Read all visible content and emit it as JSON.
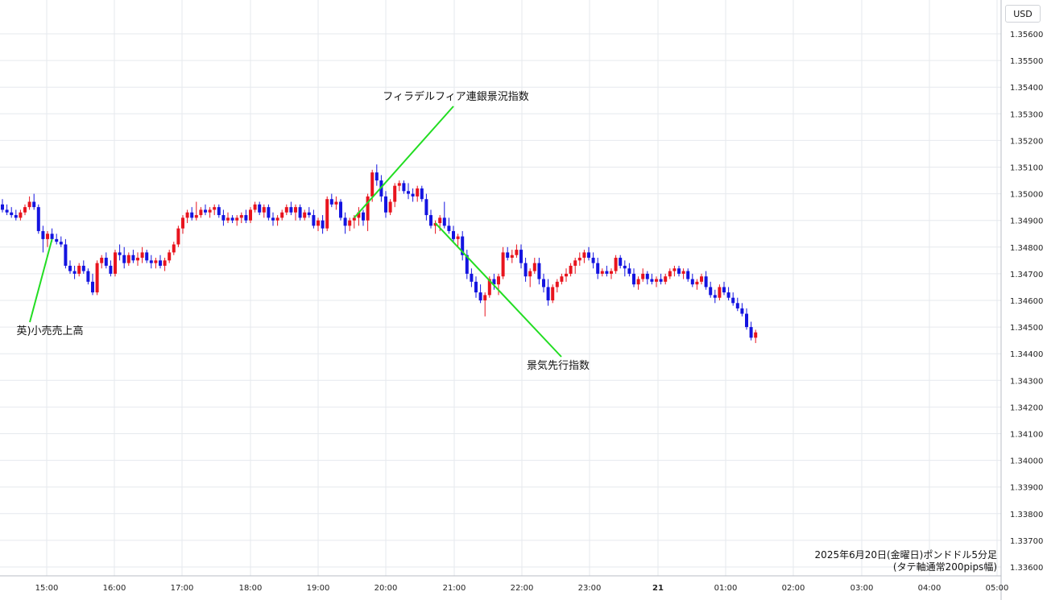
{
  "currency": "USD",
  "chart_data": {
    "type": "candlestick",
    "title": "2025年6月20日(金曜日)ポンドドル5分足",
    "subtitle": "(タテ軸通常200pips幅)",
    "ylim": [
      1.3355,
      1.357
    ],
    "yticks": [
      "1.35600",
      "1.35500",
      "1.35400",
      "1.35300",
      "1.35200",
      "1.35100",
      "1.35000",
      "1.34900",
      "1.34800",
      "1.34700",
      "1.34600",
      "1.34500",
      "1.34400",
      "1.34300",
      "1.34200",
      "1.34100",
      "1.34000",
      "1.33900",
      "1.33800",
      "1.33700",
      "1.33600"
    ],
    "xticks": [
      "15:00",
      "16:00",
      "17:00",
      "18:00",
      "19:00",
      "20:00",
      "21:00",
      "22:00",
      "23:00",
      "21",
      "01:00",
      "02:00",
      "03:00",
      "04:00",
      "05:00"
    ],
    "xticks_bold": [
      "21"
    ],
    "grid": true,
    "up_color": "#e8141e",
    "down_color": "#1414e0",
    "annotations": [
      {
        "text": "英)小売売上高",
        "time_index": 11
      },
      {
        "text": "フィラデルフィア連銀景況指数",
        "time_index": 78
      },
      {
        "text": "景気先行指数",
        "time_index": 96
      }
    ],
    "ohlc_start_time": "14:30",
    "interval_minutes": 5,
    "ohlc": [
      [
        1.3496,
        1.3498,
        1.3493,
        1.3494
      ],
      [
        1.3494,
        1.3496,
        1.3492,
        1.3493
      ],
      [
        1.3493,
        1.3495,
        1.3491,
        1.3492
      ],
      [
        1.3492,
        1.3494,
        1.349,
        1.3491
      ],
      [
        1.3491,
        1.3494,
        1.349,
        1.3493
      ],
      [
        1.3493,
        1.3496,
        1.3492,
        1.3495
      ],
      [
        1.3495,
        1.3499,
        1.3494,
        1.3497
      ],
      [
        1.3497,
        1.35,
        1.3494,
        1.3495
      ],
      [
        1.3495,
        1.3496,
        1.3485,
        1.3486
      ],
      [
        1.3486,
        1.3488,
        1.3478,
        1.3483
      ],
      [
        1.3483,
        1.3486,
        1.348,
        1.3485
      ],
      [
        1.3485,
        1.3487,
        1.3482,
        1.3483
      ],
      [
        1.3483,
        1.3485,
        1.3481,
        1.3482
      ],
      [
        1.3482,
        1.3484,
        1.348,
        1.3481
      ],
      [
        1.3481,
        1.3483,
        1.3472,
        1.3473
      ],
      [
        1.3473,
        1.3475,
        1.347,
        1.3471
      ],
      [
        1.3471,
        1.3473,
        1.3468,
        1.347
      ],
      [
        1.347,
        1.3474,
        1.3469,
        1.3473
      ],
      [
        1.3473,
        1.3475,
        1.347,
        1.3471
      ],
      [
        1.3471,
        1.3472,
        1.3466,
        1.3467
      ],
      [
        1.3467,
        1.347,
        1.3462,
        1.3463
      ],
      [
        1.3463,
        1.3475,
        1.3462,
        1.3474
      ],
      [
        1.3474,
        1.3477,
        1.3472,
        1.3476
      ],
      [
        1.3476,
        1.3478,
        1.3472,
        1.3473
      ],
      [
        1.3473,
        1.3475,
        1.3469,
        1.347
      ],
      [
        1.347,
        1.3479,
        1.3469,
        1.3478
      ],
      [
        1.3478,
        1.3481,
        1.3475,
        1.3477
      ],
      [
        1.3477,
        1.348,
        1.3472,
        1.3474
      ],
      [
        1.3474,
        1.3478,
        1.3473,
        1.3477
      ],
      [
        1.3477,
        1.3479,
        1.3474,
        1.3475
      ],
      [
        1.3475,
        1.3478,
        1.3473,
        1.3476
      ],
      [
        1.3476,
        1.348,
        1.3474,
        1.3478
      ],
      [
        1.3478,
        1.3479,
        1.3474,
        1.3475
      ],
      [
        1.3475,
        1.3477,
        1.3472,
        1.3474
      ],
      [
        1.3474,
        1.3476,
        1.3472,
        1.3475
      ],
      [
        1.3475,
        1.3477,
        1.3472,
        1.3473
      ],
      [
        1.3473,
        1.3476,
        1.3471,
        1.3475
      ],
      [
        1.3475,
        1.3479,
        1.3474,
        1.3478
      ],
      [
        1.3478,
        1.3482,
        1.3477,
        1.3481
      ],
      [
        1.3481,
        1.3488,
        1.348,
        1.3487
      ],
      [
        1.3487,
        1.3492,
        1.3485,
        1.3491
      ],
      [
        1.3491,
        1.3494,
        1.3489,
        1.3493
      ],
      [
        1.3493,
        1.3495,
        1.349,
        1.3491
      ],
      [
        1.3491,
        1.3497,
        1.349,
        1.3492
      ],
      [
        1.3492,
        1.3495,
        1.3491,
        1.3494
      ],
      [
        1.3494,
        1.3496,
        1.3492,
        1.3493
      ],
      [
        1.3493,
        1.3495,
        1.3491,
        1.3494
      ],
      [
        1.3494,
        1.3496,
        1.3492,
        1.3495
      ],
      [
        1.3495,
        1.3496,
        1.3491,
        1.3492
      ],
      [
        1.3492,
        1.3494,
        1.3488,
        1.349
      ],
      [
        1.349,
        1.3493,
        1.3489,
        1.3491
      ],
      [
        1.3491,
        1.3492,
        1.3489,
        1.349
      ],
      [
        1.349,
        1.3492,
        1.3488,
        1.3491
      ],
      [
        1.3491,
        1.3493,
        1.3489,
        1.3492
      ],
      [
        1.3492,
        1.3494,
        1.3489,
        1.349
      ],
      [
        1.349,
        1.3495,
        1.3489,
        1.3494
      ],
      [
        1.3494,
        1.3497,
        1.3493,
        1.3496
      ],
      [
        1.3496,
        1.3497,
        1.3492,
        1.3493
      ],
      [
        1.3493,
        1.3496,
        1.3491,
        1.3495
      ],
      [
        1.3495,
        1.3496,
        1.349,
        1.3491
      ],
      [
        1.3491,
        1.3493,
        1.3488,
        1.349
      ],
      [
        1.349,
        1.3492,
        1.3488,
        1.3491
      ],
      [
        1.3491,
        1.3494,
        1.349,
        1.3493
      ],
      [
        1.3493,
        1.3496,
        1.3492,
        1.3495
      ],
      [
        1.3495,
        1.3497,
        1.3492,
        1.3493
      ],
      [
        1.3493,
        1.3496,
        1.349,
        1.3495
      ],
      [
        1.3495,
        1.3496,
        1.349,
        1.3491
      ],
      [
        1.3491,
        1.3494,
        1.349,
        1.3493
      ],
      [
        1.3493,
        1.3495,
        1.3491,
        1.3492
      ],
      [
        1.3492,
        1.3494,
        1.3487,
        1.3488
      ],
      [
        1.3488,
        1.3491,
        1.3486,
        1.349
      ],
      [
        1.349,
        1.3492,
        1.3485,
        1.3487
      ],
      [
        1.3487,
        1.3499,
        1.3486,
        1.3498
      ],
      [
        1.3498,
        1.35,
        1.3495,
        1.3496
      ],
      [
        1.3496,
        1.3499,
        1.3494,
        1.3497
      ],
      [
        1.3497,
        1.3498,
        1.349,
        1.3491
      ],
      [
        1.3491,
        1.3493,
        1.3485,
        1.3488
      ],
      [
        1.3488,
        1.3491,
        1.3486,
        1.349
      ],
      [
        1.349,
        1.3492,
        1.3487,
        1.3491
      ],
      [
        1.3491,
        1.3495,
        1.3488,
        1.3493
      ],
      [
        1.3493,
        1.3494,
        1.3488,
        1.349
      ],
      [
        1.349,
        1.35,
        1.3486,
        1.3499
      ],
      [
        1.3499,
        1.3509,
        1.3497,
        1.3508
      ],
      [
        1.3508,
        1.3511,
        1.3503,
        1.3505
      ],
      [
        1.3505,
        1.3507,
        1.3497,
        1.3499
      ],
      [
        1.3499,
        1.3501,
        1.3491,
        1.3493
      ],
      [
        1.3493,
        1.3498,
        1.3492,
        1.3497
      ],
      [
        1.3497,
        1.3504,
        1.3495,
        1.3503
      ],
      [
        1.3503,
        1.3505,
        1.3501,
        1.3504
      ],
      [
        1.3504,
        1.3505,
        1.35,
        1.3501
      ],
      [
        1.3501,
        1.3504,
        1.3498,
        1.35
      ],
      [
        1.35,
        1.3502,
        1.3497,
        1.3499
      ],
      [
        1.3499,
        1.3503,
        1.3497,
        1.3502
      ],
      [
        1.3502,
        1.3503,
        1.3497,
        1.3498
      ],
      [
        1.3498,
        1.35,
        1.349,
        1.3492
      ],
      [
        1.3492,
        1.3494,
        1.3487,
        1.3488
      ],
      [
        1.3488,
        1.349,
        1.3485,
        1.3489
      ],
      [
        1.3489,
        1.3492,
        1.3486,
        1.3491
      ],
      [
        1.3491,
        1.3497,
        1.3487,
        1.3488
      ],
      [
        1.3488,
        1.3491,
        1.3485,
        1.3486
      ],
      [
        1.3486,
        1.3488,
        1.3482,
        1.3483
      ],
      [
        1.3483,
        1.3485,
        1.348,
        1.3484
      ],
      [
        1.3484,
        1.3486,
        1.3475,
        1.3477
      ],
      [
        1.3477,
        1.3479,
        1.3468,
        1.347
      ],
      [
        1.347,
        1.3472,
        1.3465,
        1.3467
      ],
      [
        1.3467,
        1.3469,
        1.3461,
        1.3463
      ],
      [
        1.3463,
        1.3466,
        1.3459,
        1.346
      ],
      [
        1.346,
        1.3463,
        1.3454,
        1.3462
      ],
      [
        1.3462,
        1.3469,
        1.3461,
        1.3468
      ],
      [
        1.3468,
        1.347,
        1.3464,
        1.3466
      ],
      [
        1.3466,
        1.347,
        1.3462,
        1.3469
      ],
      [
        1.3469,
        1.348,
        1.3468,
        1.3478
      ],
      [
        1.3478,
        1.348,
        1.3475,
        1.3476
      ],
      [
        1.3476,
        1.3479,
        1.3474,
        1.3477
      ],
      [
        1.3477,
        1.3481,
        1.3476,
        1.3479
      ],
      [
        1.3479,
        1.3481,
        1.3472,
        1.3474
      ],
      [
        1.3474,
        1.3476,
        1.3467,
        1.3469
      ],
      [
        1.3469,
        1.3472,
        1.3465,
        1.3471
      ],
      [
        1.3471,
        1.3476,
        1.347,
        1.3474
      ],
      [
        1.3474,
        1.3476,
        1.3466,
        1.3468
      ],
      [
        1.3468,
        1.347,
        1.3463,
        1.3465
      ],
      [
        1.3465,
        1.3468,
        1.3458,
        1.346
      ],
      [
        1.346,
        1.3466,
        1.3459,
        1.3465
      ],
      [
        1.3465,
        1.3468,
        1.3463,
        1.3467
      ],
      [
        1.3467,
        1.347,
        1.3466,
        1.3469
      ],
      [
        1.3469,
        1.3472,
        1.3467,
        1.347
      ],
      [
        1.347,
        1.3474,
        1.3469,
        1.3473
      ],
      [
        1.3473,
        1.3476,
        1.347,
        1.3475
      ],
      [
        1.3475,
        1.3478,
        1.3473,
        1.3476
      ],
      [
        1.3476,
        1.3479,
        1.3474,
        1.3478
      ],
      [
        1.3478,
        1.348,
        1.3475,
        1.3476
      ],
      [
        1.3476,
        1.3478,
        1.3472,
        1.3474
      ],
      [
        1.3474,
        1.3476,
        1.3468,
        1.347
      ],
      [
        1.347,
        1.3472,
        1.3469,
        1.3471
      ],
      [
        1.3471,
        1.3473,
        1.3469,
        1.347
      ],
      [
        1.347,
        1.3472,
        1.3468,
        1.3471
      ],
      [
        1.3471,
        1.3477,
        1.347,
        1.3476
      ],
      [
        1.3476,
        1.3477,
        1.3472,
        1.3473
      ],
      [
        1.3473,
        1.3475,
        1.3469,
        1.3472
      ],
      [
        1.3472,
        1.3474,
        1.3469,
        1.347
      ],
      [
        1.347,
        1.3472,
        1.3465,
        1.3466
      ],
      [
        1.3466,
        1.3469,
        1.3464,
        1.3468
      ],
      [
        1.3468,
        1.3472,
        1.3467,
        1.347
      ],
      [
        1.347,
        1.3471,
        1.3466,
        1.3468
      ],
      [
        1.3468,
        1.347,
        1.3466,
        1.3467
      ],
      [
        1.3467,
        1.3469,
        1.3465,
        1.3468
      ],
      [
        1.3468,
        1.347,
        1.3466,
        1.3467
      ],
      [
        1.3467,
        1.347,
        1.3466,
        1.3469
      ],
      [
        1.3469,
        1.3472,
        1.3468,
        1.3471
      ],
      [
        1.3471,
        1.3473,
        1.3469,
        1.3472
      ],
      [
        1.3472,
        1.3473,
        1.3469,
        1.347
      ],
      [
        1.347,
        1.3472,
        1.3468,
        1.3471
      ],
      [
        1.3471,
        1.3472,
        1.3467,
        1.3468
      ],
      [
        1.3468,
        1.347,
        1.3465,
        1.3466
      ],
      [
        1.3466,
        1.3468,
        1.3464,
        1.3467
      ],
      [
        1.3467,
        1.347,
        1.3466,
        1.3469
      ],
      [
        1.3469,
        1.3471,
        1.3464,
        1.3465
      ],
      [
        1.3465,
        1.3467,
        1.3461,
        1.3462
      ],
      [
        1.3462,
        1.3464,
        1.3459,
        1.3461
      ],
      [
        1.3461,
        1.3466,
        1.346,
        1.3465
      ],
      [
        1.3465,
        1.3467,
        1.3462,
        1.3463
      ],
      [
        1.3463,
        1.3465,
        1.346,
        1.3461
      ],
      [
        1.3461,
        1.3463,
        1.3458,
        1.3459
      ],
      [
        1.3459,
        1.3461,
        1.3456,
        1.3457
      ],
      [
        1.3457,
        1.3459,
        1.3454,
        1.3455
      ],
      [
        1.3455,
        1.3457,
        1.3449,
        1.345
      ],
      [
        1.345,
        1.3452,
        1.3445,
        1.3446
      ],
      [
        1.3446,
        1.3449,
        1.3444,
        1.3448
      ]
    ]
  }
}
